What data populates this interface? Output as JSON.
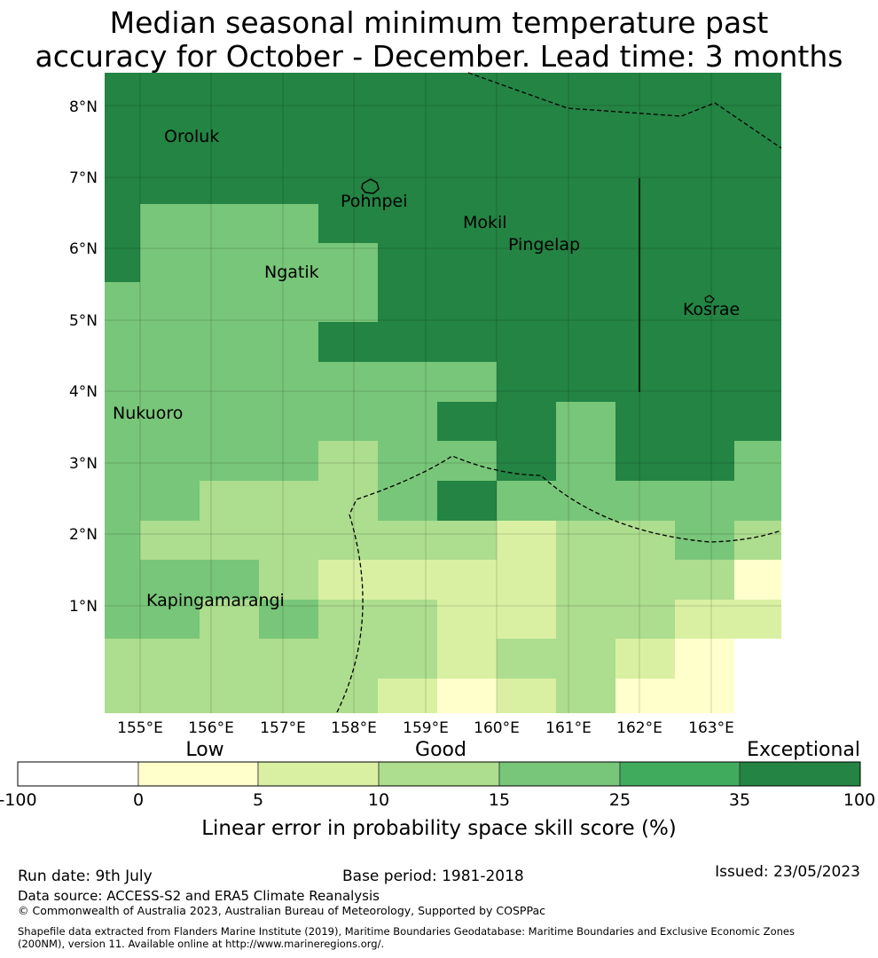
{
  "title": {
    "line1": "Median seasonal minimum temperature past",
    "line2": "accuracy for October - December. Lead time: 3 months"
  },
  "map": {
    "lon_range": [
      154.5,
      164.0
    ],
    "lat_range": [
      -0.5,
      8.5
    ],
    "lon_ticks": [
      "155°E",
      "156°E",
      "157°E",
      "158°E",
      "159°E",
      "160°E",
      "161°E",
      "162°E",
      "163°E"
    ],
    "lat_ticks": [
      "1°N",
      "2°N",
      "3°N",
      "4°N",
      "5°N",
      "6°N",
      "7°N",
      "8°N"
    ],
    "grid": true,
    "places": [
      {
        "name": "Oroluk",
        "lon": 155.3,
        "lat": 7.6
      },
      {
        "name": "Pohnpei",
        "lon": 158.2,
        "lat": 6.9
      },
      {
        "name": "Mokil",
        "lon": 159.8,
        "lat": 6.4
      },
      {
        "name": "Pingelap",
        "lon": 160.7,
        "lat": 6.2
      },
      {
        "name": "Ngatik",
        "lon": 157.1,
        "lat": 5.6
      },
      {
        "name": "Kosrae",
        "lon": 162.9,
        "lat": 5.3
      },
      {
        "name": "Nukuoro",
        "lon": 154.8,
        "lat": 3.9
      },
      {
        "name": "Kapingamarangi",
        "lon": 154.8,
        "lat": 1.1
      }
    ]
  },
  "legend": {
    "categories": [
      "Low",
      "Good",
      "Exceptional"
    ],
    "ticks": [
      "-100",
      "0",
      "5",
      "10",
      "15",
      "25",
      "35",
      "100"
    ],
    "colors": [
      "#ffffff",
      "#ffffcc",
      "#d9f0a3",
      "#addd8e",
      "#78c679",
      "#41ab5d",
      "#238443"
    ],
    "label": "Linear error in probability space skill score (%)"
  },
  "footer": {
    "run_date": "Run date: 9th July",
    "base_period": "Base period: 1981-2018",
    "issued": "Issued: 23/05/2023",
    "data_source": "Data source: ACCESS-S2 and ERA5 Climate Reanalysis",
    "copyright": "© Commonwealth of Australia 2023, Australian Bureau of Meteorology, Supported by COSPPac",
    "shapefile_line1": "Shapefile data extracted from Flanders Marine Institute (2019), Maritime Boundaries Geodatabase: Maritime Boundaries and Exclusive Economic Zones",
    "shapefile_line2": "(200NM), version 11. Available online at http://www.marineregions.org/."
  }
}
